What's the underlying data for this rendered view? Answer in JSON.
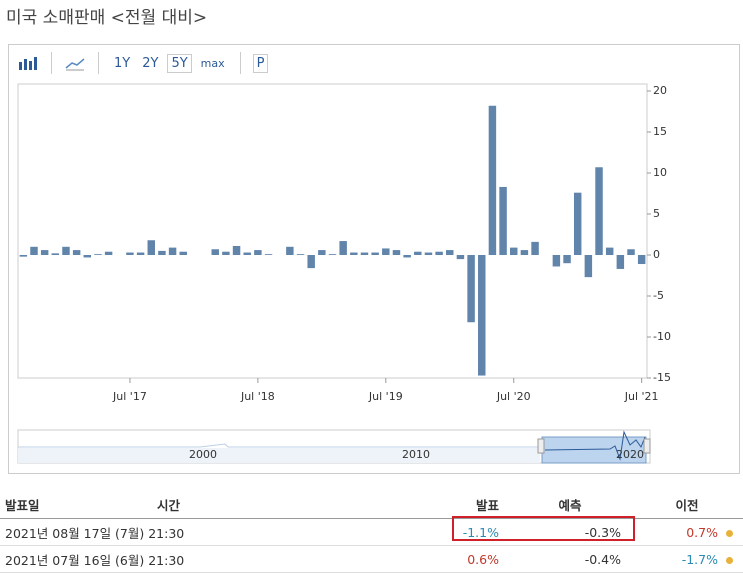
{
  "title": "미국 소매판매 <전월 대비>",
  "toolbar": {
    "ranges": [
      "1Y",
      "2Y",
      "5Y",
      "max"
    ],
    "extra": "P"
  },
  "chart_data": {
    "type": "bar",
    "categories": [
      null,
      null,
      null,
      null,
      null,
      null,
      null,
      null,
      null,
      null,
      "Jul '17",
      null,
      null,
      null,
      null,
      null,
      null,
      null,
      null,
      null,
      null,
      null,
      "Jul '18",
      null,
      null,
      null,
      null,
      null,
      null,
      null,
      null,
      null,
      null,
      null,
      "Jul '19",
      null,
      null,
      null,
      null,
      null,
      null,
      null,
      null,
      null,
      null,
      null,
      "Jul '20",
      null,
      null,
      null,
      null,
      null,
      null,
      null,
      null,
      null,
      null,
      null,
      "Jul '21"
    ],
    "values": [
      -0.2,
      1.0,
      0.6,
      0.2,
      1.0,
      0.6,
      -0.3,
      0.1,
      0.4,
      0.0,
      0.3,
      0.3,
      1.8,
      0.5,
      0.9,
      0.4,
      0.0,
      0.0,
      0.7,
      0.4,
      1.1,
      0.3,
      0.6,
      0.1,
      0.0,
      1.0,
      0.1,
      -1.6,
      0.6,
      0.1,
      1.7,
      0.3,
      0.3,
      0.3,
      0.8,
      0.6,
      -0.3,
      0.4,
      0.3,
      0.4,
      0.6,
      -0.5,
      -8.2,
      -14.7,
      18.2,
      8.3,
      0.9,
      0.6,
      1.6,
      0.0,
      -1.4,
      -1.0,
      7.6,
      -2.7,
      10.7,
      0.9,
      -1.7,
      0.7,
      -1.1
    ],
    "color": "#6184ab",
    "ylim": [
      -15,
      20
    ],
    "yticks": [
      20,
      15,
      10,
      5,
      0,
      -5,
      -10,
      -15
    ],
    "yaxis_position": "right"
  },
  "navigator": {
    "labels": [
      "2000",
      "2010",
      "2020"
    ]
  },
  "table": {
    "header": [
      "발표일",
      "시간",
      "발표",
      "예측",
      "이전"
    ],
    "rows": [
      [
        "2021년 08월 17일 (7월)",
        "21:30",
        "-1.1%",
        "-0.3%",
        "0.7%"
      ],
      [
        "2021년 07월 16일 (6월)",
        "21:30",
        "0.6%",
        "-0.4%",
        "-1.7%"
      ]
    ]
  }
}
